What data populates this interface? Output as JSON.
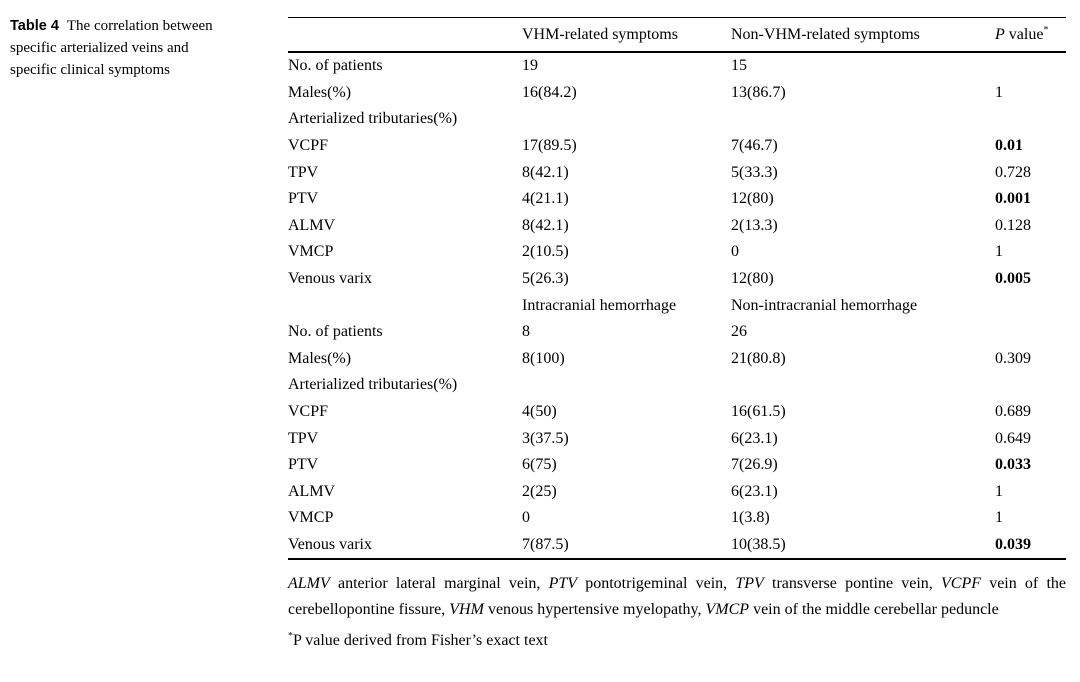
{
  "colors": {
    "background": "#ffffff",
    "text": "#000000",
    "rule": "#000000"
  },
  "caption": {
    "label": "Table 4",
    "text": "The correlation between specific arterialized veins and specific clinical symptoms"
  },
  "table": {
    "header": {
      "col1": "",
      "col2": "VHM-related symptoms",
      "col3": "Non-VHM-related symptoms",
      "p_label_italic": "P",
      "p_label_rest": " value",
      "p_label_sup": "*"
    },
    "rows": [
      {
        "label": "No. of patients",
        "c2": "19",
        "c3": "15",
        "p": ""
      },
      {
        "label": "Males(%)",
        "c2": "16(84.2)",
        "c3": "13(86.7)",
        "p": "1"
      },
      {
        "label": "Arterialized tributaries(%)",
        "c2": "",
        "c3": "",
        "p": ""
      },
      {
        "label": "VCPF",
        "c2": "17(89.5)",
        "c3": "7(46.7)",
        "p": "0.01",
        "pBold": true
      },
      {
        "label": "TPV",
        "c2": "8(42.1)",
        "c3": "5(33.3)",
        "p": "0.728"
      },
      {
        "label": "PTV",
        "c2": "4(21.1)",
        "c3": "12(80)",
        "p": "0.001",
        "pBold": true
      },
      {
        "label": "ALMV",
        "c2": "8(42.1)",
        "c3": "2(13.3)",
        "p": "0.128"
      },
      {
        "label": "VMCP",
        "c2": "2(10.5)",
        "c3": "0",
        "p": "1"
      },
      {
        "label": "Venous varix",
        "c2": "5(26.3)",
        "c3": "12(80)",
        "p": "0.005",
        "pBold": true
      },
      {
        "label": "",
        "c2": "Intracranial hemorrhage",
        "c3": "Non-intracranial hemorrhage",
        "p": "",
        "subheader": true
      },
      {
        "label": "No. of patients",
        "c2": "8",
        "c3": "26",
        "p": ""
      },
      {
        "label": "Males(%)",
        "c2": "8(100)",
        "c3": "21(80.8)",
        "p": "0.309"
      },
      {
        "label": "Arterialized tributaries(%)",
        "c2": "",
        "c3": "",
        "p": ""
      },
      {
        "label": "VCPF",
        "c2": "4(50)",
        "c3": "16(61.5)",
        "p": "0.689"
      },
      {
        "label": "TPV",
        "c2": "3(37.5)",
        "c3": "6(23.1)",
        "p": "0.649"
      },
      {
        "label": "PTV",
        "c2": "6(75)",
        "c3": "7(26.9)",
        "p": "0.033",
        "pBold": true
      },
      {
        "label": "ALMV",
        "c2": "2(25)",
        "c3": "6(23.1)",
        "p": "1"
      },
      {
        "label": "VMCP",
        "c2": "0",
        "c3": "1(3.8)",
        "p": "1"
      },
      {
        "label": "Venous varix",
        "c2": "7(87.5)",
        "c3": "10(38.5)",
        "p": "0.039",
        "pBold": true
      }
    ]
  },
  "footnotes": {
    "abbreviations": [
      {
        "t": "ALMV",
        "i": true
      },
      {
        "t": " anterior lateral marginal vein, ",
        "i": false
      },
      {
        "t": "PTV",
        "i": true
      },
      {
        "t": " pontotrigeminal vein, ",
        "i": false
      },
      {
        "t": "TPV",
        "i": true
      },
      {
        "t": " transverse pontine vein, ",
        "i": false
      },
      {
        "t": "VCPF",
        "i": true
      },
      {
        "t": " vein of the cerebellopontine fissure, ",
        "i": false
      },
      {
        "t": "VHM",
        "i": true
      },
      {
        "t": " venous hypertensive myelopathy, ",
        "i": false
      },
      {
        "t": "VMCP",
        "i": true
      },
      {
        "t": " vein of the middle cerebellar peduncle",
        "i": false
      }
    ],
    "pvalue_sup": "*",
    "pvalue_text": "P value derived from Fisher’s exact text"
  }
}
